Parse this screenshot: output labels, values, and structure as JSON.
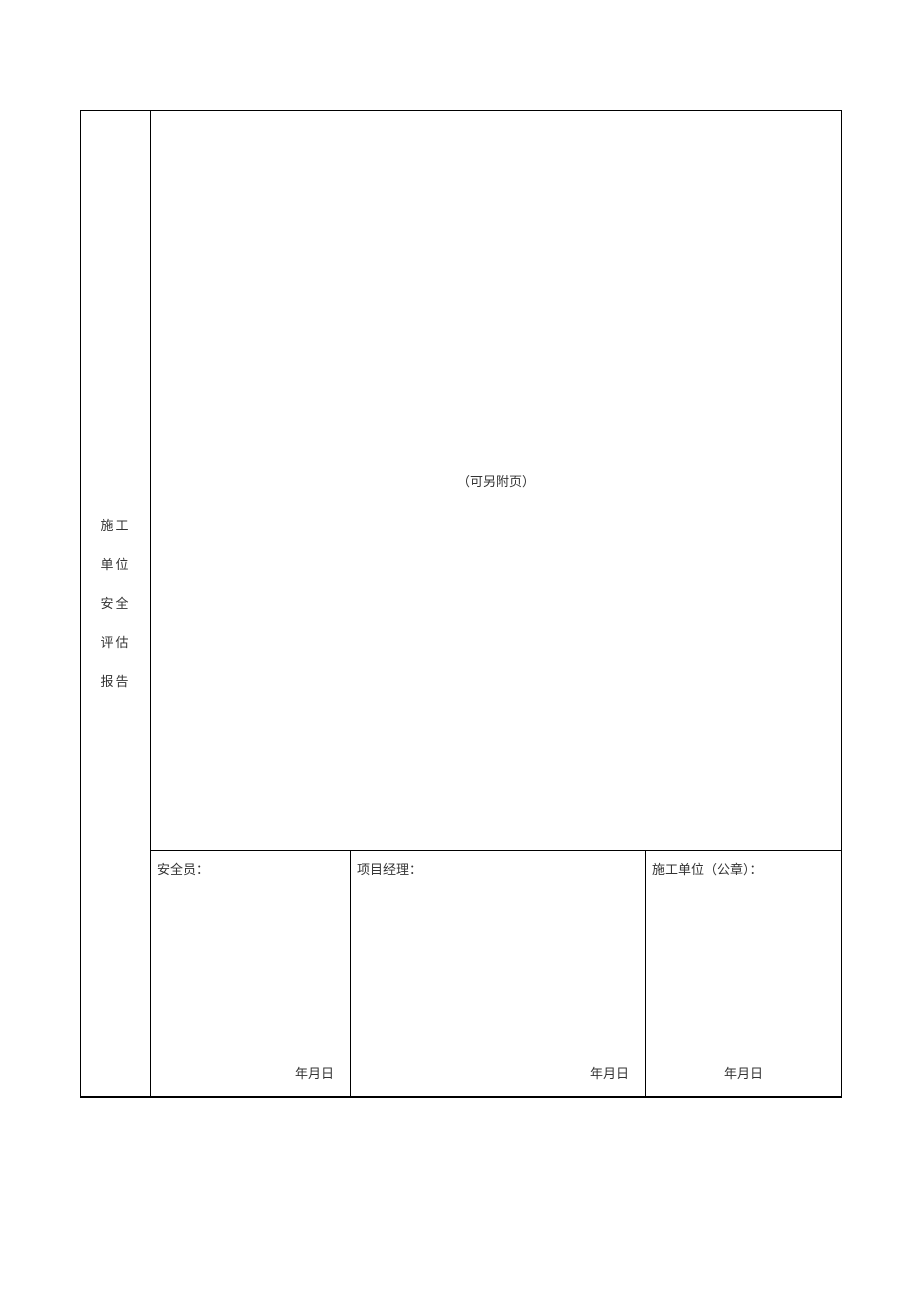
{
  "table": {
    "border_color": "#000000",
    "background_color": "#ffffff",
    "text_color": "#333333",
    "fontsize": 13,
    "row_header": {
      "line1": "施工",
      "line2": "单位",
      "line3": "安全",
      "line4": "评估",
      "line5": "报告"
    },
    "content_note": "（可另附页）",
    "signatures": {
      "col1": {
        "label": "安全员：",
        "date": "年月日"
      },
      "col2": {
        "label": "项目经理：",
        "date": "年月日"
      },
      "col3": {
        "label": "施工单位（公章）：",
        "date": "年月日"
      }
    }
  }
}
